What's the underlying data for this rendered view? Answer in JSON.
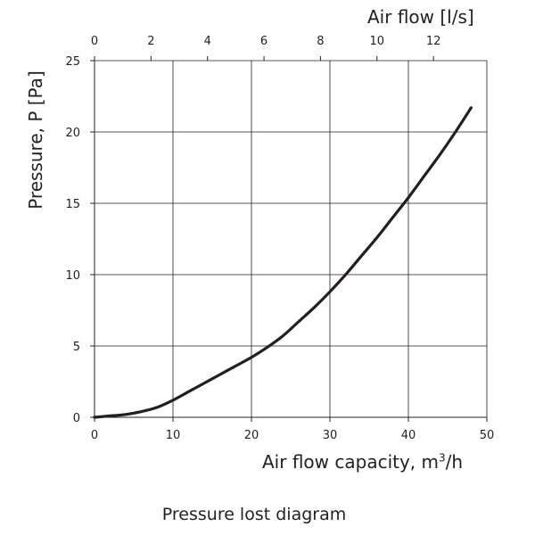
{
  "chart_data": {
    "type": "line",
    "title": "Pressure lost diagram",
    "xlabel": "Air flow capacity, m",
    "xlabel_sup": "3",
    "xlabel_suffix": "/h",
    "ylabel": "Pressure, P [Pa]",
    "x2label": "Air flow [l/s]",
    "xlim": [
      0,
      50
    ],
    "ylim": [
      0,
      25
    ],
    "x2lim": [
      0,
      13.89
    ],
    "x_ticks": [
      0,
      10,
      20,
      30,
      40,
      50
    ],
    "y_ticks": [
      0,
      5,
      10,
      15,
      20,
      25
    ],
    "x2_ticks": [
      0,
      2,
      4,
      6,
      8,
      10,
      12
    ],
    "grid": true,
    "series": [
      {
        "x": [
          0,
          2,
          4,
          6,
          8,
          10,
          12,
          14,
          16,
          18,
          20,
          22,
          24,
          26,
          28,
          30,
          32,
          34,
          36,
          38,
          40,
          42,
          44,
          46,
          48
        ],
        "y": [
          0,
          0.1,
          0.2,
          0.4,
          0.7,
          1.2,
          1.8,
          2.4,
          3.0,
          3.6,
          4.2,
          4.9,
          5.7,
          6.7,
          7.7,
          8.8,
          10.0,
          11.3,
          12.6,
          14.0,
          15.4,
          16.9,
          18.4,
          20.0,
          21.7
        ],
        "color": "#231f20"
      }
    ]
  }
}
